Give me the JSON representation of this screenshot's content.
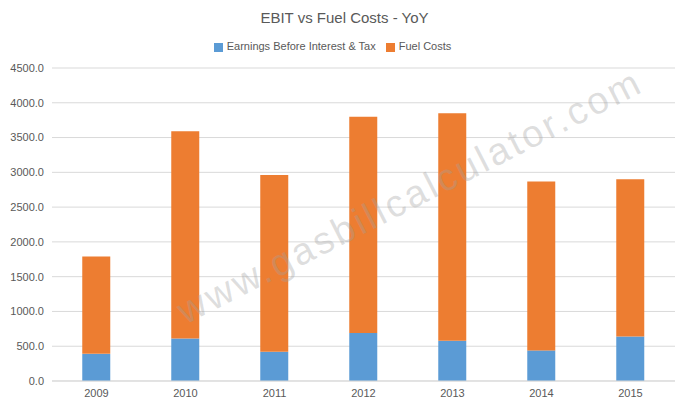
{
  "chart_data": {
    "type": "bar",
    "title": "EBIT vs Fuel Costs - YoY",
    "stacked": true,
    "grid": true,
    "legend": "top",
    "categories": [
      "2009",
      "2010",
      "2011",
      "2012",
      "2013",
      "2014",
      "2015"
    ],
    "series": [
      {
        "name": "Earnings Before Interest & Tax",
        "color": "#5b9bd5",
        "values": [
          390,
          610,
          420,
          690,
          580,
          440,
          640
        ]
      },
      {
        "name": "Fuel Costs",
        "color": "#ed7d31",
        "values": [
          1400,
          2980,
          2540,
          3110,
          3270,
          2430,
          2260
        ]
      }
    ],
    "ylim": [
      0,
      4500
    ],
    "yticks": [
      {
        "value": 0,
        "label": "0.0"
      },
      {
        "value": 500,
        "label": "500.0"
      },
      {
        "value": 1000,
        "label": "1000.0"
      },
      {
        "value": 1500,
        "label": "1500.0"
      },
      {
        "value": 2000,
        "label": "2000.0"
      },
      {
        "value": 2500,
        "label": "2500.0"
      },
      {
        "value": 3000,
        "label": "3000.0"
      },
      {
        "value": 3500,
        "label": "3500.0"
      },
      {
        "value": 4000,
        "label": "4000.0"
      },
      {
        "value": 4500,
        "label": "4500.0"
      }
    ],
    "annotations": [
      {
        "text": "www.gasbillcalculator.com"
      }
    ]
  }
}
